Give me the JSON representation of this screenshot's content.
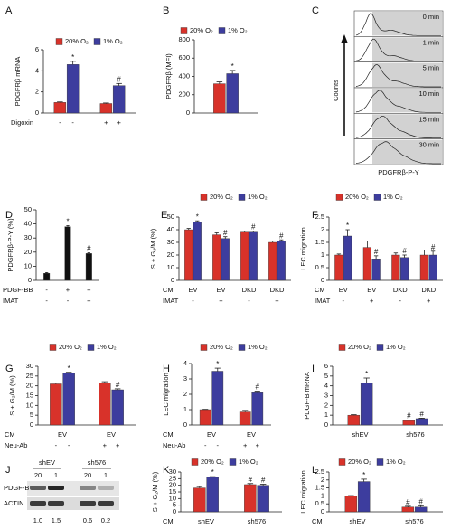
{
  "chart_data": [
    {
      "type": "bar",
      "panel": "A",
      "ylabel": "PDGFRβ mRNA",
      "ylim": [
        0,
        6
      ],
      "yticks": [
        0,
        2,
        4,
        6
      ],
      "legend": true,
      "series": [
        {
          "name": "20% O₂",
          "color": "#d8322a",
          "values": [
            1.0,
            0.9
          ],
          "errors": [
            0.05,
            0.05
          ]
        },
        {
          "name": "1% O₂",
          "color": "#3d3d9e",
          "values": [
            4.6,
            2.6
          ],
          "errors": [
            0.3,
            0.2
          ],
          "markers": [
            "*",
            "#"
          ]
        }
      ],
      "rows": [
        {
          "label": "Digoxin",
          "cells": [
            "-",
            "-",
            "+",
            "+"
          ]
        }
      ]
    },
    {
      "type": "bar",
      "panel": "B",
      "ylabel": "PDGFRβ (MFI)",
      "ylim": [
        0,
        800
      ],
      "yticks": [
        0,
        200,
        400,
        600,
        800
      ],
      "legend": true,
      "series": [
        {
          "name": "20% O₂",
          "color": "#d8322a",
          "values": [
            320
          ],
          "errors": [
            20
          ]
        },
        {
          "name": "1% O₂",
          "color": "#3d3d9e",
          "values": [
            430
          ],
          "errors": [
            35
          ],
          "markers": [
            "*"
          ]
        }
      ]
    },
    {
      "type": "flow",
      "panel": "C",
      "labels": [
        "0 min",
        "1 min",
        "5 min",
        "10 min",
        "15 min",
        "30 min"
      ],
      "ylabel": "Counts",
      "xlabel": "PDGFRβ-P-Y"
    },
    {
      "type": "bar",
      "panel": "D",
      "ylabel": "PDGFRβ-P-Y (%)",
      "ylim": [
        0,
        50
      ],
      "yticks": [
        0,
        10,
        20,
        30,
        40,
        50
      ],
      "series": [
        {
          "color": "#111111",
          "values": [
            5,
            38,
            19
          ],
          "errors": [
            0.5,
            0.8,
            0.6
          ],
          "markers": [
            null,
            "*",
            "#"
          ]
        }
      ],
      "rows": [
        {
          "label": "PDGF-BB",
          "cells": [
            "-",
            "+",
            "+"
          ]
        },
        {
          "label": "IMAT",
          "cells": [
            "-",
            "-",
            "+"
          ]
        }
      ]
    },
    {
      "type": "bar",
      "panel": "E",
      "ylabel": "S + G₂/M (%)",
      "ylim": [
        0,
        50
      ],
      "yticks": [
        0,
        10,
        20,
        30,
        40,
        50
      ],
      "legend": true,
      "series": [
        {
          "name": "20% O₂",
          "color": "#d8322a",
          "values": [
            40,
            36,
            38,
            30
          ],
          "errors": [
            1,
            1.5,
            1,
            1
          ]
        },
        {
          "name": "1% O₂",
          "color": "#3d3d9e",
          "values": [
            46,
            33,
            38,
            31
          ],
          "errors": [
            1,
            1.5,
            1,
            1
          ],
          "markers": [
            "*",
            "#",
            "#",
            "#"
          ]
        }
      ],
      "rows": [
        {
          "label": "CM",
          "cells": [
            "EV",
            "EV",
            "DKD",
            "DKD"
          ]
        },
        {
          "label": "IMAT",
          "cells": [
            "-",
            "+",
            "-",
            "+"
          ]
        }
      ]
    },
    {
      "type": "bar",
      "panel": "F",
      "ylabel": "LEC migration",
      "ylim": [
        0,
        2.5
      ],
      "yticks": [
        0,
        0.5,
        1,
        1.5,
        2,
        2.5
      ],
      "legend": true,
      "series": [
        {
          "name": "20% O₂",
          "color": "#d8322a",
          "values": [
            1.0,
            1.3,
            1.0,
            1.0
          ],
          "errors": [
            0.04,
            0.25,
            0.08,
            0.2
          ]
        },
        {
          "name": "1% O₂",
          "color": "#3d3d9e",
          "values": [
            1.75,
            0.85,
            0.9,
            1.0
          ],
          "errors": [
            0.25,
            0.12,
            0.1,
            0.15
          ],
          "markers": [
            "*",
            "#",
            "#",
            "#"
          ]
        }
      ],
      "rows": [
        {
          "label": "CM",
          "cells": [
            "EV",
            "EV",
            "DKD",
            "DKD"
          ]
        },
        {
          "label": "IMAT",
          "cells": [
            "-",
            "+",
            "-",
            "+"
          ]
        }
      ]
    },
    {
      "type": "bar",
      "panel": "G",
      "ylabel": "S + G₂/M (%)",
      "ylim": [
        0,
        30
      ],
      "yticks": [
        0,
        5,
        10,
        15,
        20,
        25,
        30
      ],
      "legend": true,
      "series": [
        {
          "name": "20% O₂",
          "color": "#d8322a",
          "values": [
            21,
            21.5
          ],
          "errors": [
            0.4,
            0.6
          ]
        },
        {
          "name": "1% O₂",
          "color": "#3d3d9e",
          "values": [
            26.5,
            18
          ],
          "errors": [
            0.4,
            0.5
          ],
          "markers": [
            "*",
            "#"
          ]
        }
      ],
      "rows": [
        {
          "label": "CM",
          "cells": [
            "EV",
            "EV"
          ]
        },
        {
          "label": "Neu-Ab",
          "cells": [
            "-",
            "-",
            "+",
            "+"
          ]
        }
      ]
    },
    {
      "type": "bar",
      "panel": "H",
      "ylabel": "LEC migration",
      "ylim": [
        0,
        4
      ],
      "yticks": [
        0,
        1,
        2,
        3,
        4
      ],
      "legend": true,
      "series": [
        {
          "name": "20% O₂",
          "color": "#d8322a",
          "values": [
            1.0,
            0.85
          ],
          "errors": [
            0.02,
            0.1
          ]
        },
        {
          "name": "1% O₂",
          "color": "#3d3d9e",
          "values": [
            3.5,
            2.1
          ],
          "errors": [
            0.2,
            0.1
          ],
          "markers": [
            "*",
            "#"
          ]
        }
      ],
      "rows": [
        {
          "label": "CM",
          "cells": [
            "EV",
            "EV"
          ]
        },
        {
          "label": "Neu-Ab",
          "cells": [
            "-",
            "-",
            "+",
            "+"
          ]
        }
      ]
    },
    {
      "type": "bar",
      "panel": "I",
      "ylabel": "PDGF-B mRNA",
      "ylim": [
        0,
        6
      ],
      "yticks": [
        0,
        1,
        2,
        3,
        4,
        5,
        6
      ],
      "legend": true,
      "series": [
        {
          "name": "20% O₂",
          "color": "#d8322a",
          "values": [
            1.0,
            0.45
          ],
          "errors": [
            0.05,
            0.05
          ],
          "markers": [
            null,
            "#"
          ]
        },
        {
          "name": "1% O₂",
          "color": "#3d3d9e",
          "values": [
            4.3,
            0.65
          ],
          "errors": [
            0.5,
            0.05
          ],
          "markers": [
            "*",
            "#"
          ]
        }
      ],
      "rows": [
        {
          "cells": [
            "shEV",
            "sh576"
          ]
        }
      ]
    },
    {
      "type": "blot",
      "panel": "J",
      "groups": [
        "shEV",
        "sh576"
      ],
      "lanes": [
        "20",
        "1",
        "20",
        "1"
      ],
      "bands": [
        "PDGF-B",
        "ACTIN"
      ],
      "values": [
        1.0,
        1.5,
        0.6,
        0.2
      ],
      "value_labels": [
        "1.0",
        "1.5",
        "0.6",
        "0.2"
      ]
    },
    {
      "type": "bar",
      "panel": "K",
      "ylabel": "S + G₂/M (%)",
      "ylim": [
        0,
        30
      ],
      "yticks": [
        0,
        5,
        10,
        15,
        20,
        25,
        30
      ],
      "legend": true,
      "series": [
        {
          "name": "20% O₂",
          "color": "#d8322a",
          "values": [
            18,
            20.5
          ],
          "errors": [
            1,
            0.8
          ],
          "markers": [
            null,
            "#"
          ]
        },
        {
          "name": "1% O₂",
          "color": "#3d3d9e",
          "values": [
            26,
            20
          ],
          "errors": [
            0.5,
            0.8
          ],
          "markers": [
            "*",
            "#"
          ]
        }
      ],
      "rows": [
        {
          "label": "CM",
          "cells": [
            "shEV",
            "sh576"
          ]
        }
      ]
    },
    {
      "type": "bar",
      "panel": "L",
      "ylabel": "LEC migration",
      "ylim": [
        0,
        2.5
      ],
      "yticks": [
        0,
        0.5,
        1,
        1.5,
        2,
        2.5
      ],
      "legend": true,
      "series": [
        {
          "name": "20% O₂",
          "color": "#d8322a",
          "values": [
            1.0,
            0.3
          ],
          "errors": [
            0.02,
            0.05
          ],
          "markers": [
            null,
            "#"
          ]
        },
        {
          "name": "1% O₂",
          "color": "#3d3d9e",
          "values": [
            1.9,
            0.3
          ],
          "errors": [
            0.15,
            0.08
          ],
          "markers": [
            "*",
            "#"
          ]
        }
      ],
      "rows": [
        {
          "label": "CM",
          "cells": [
            "shEV",
            "sh576"
          ]
        }
      ]
    }
  ]
}
